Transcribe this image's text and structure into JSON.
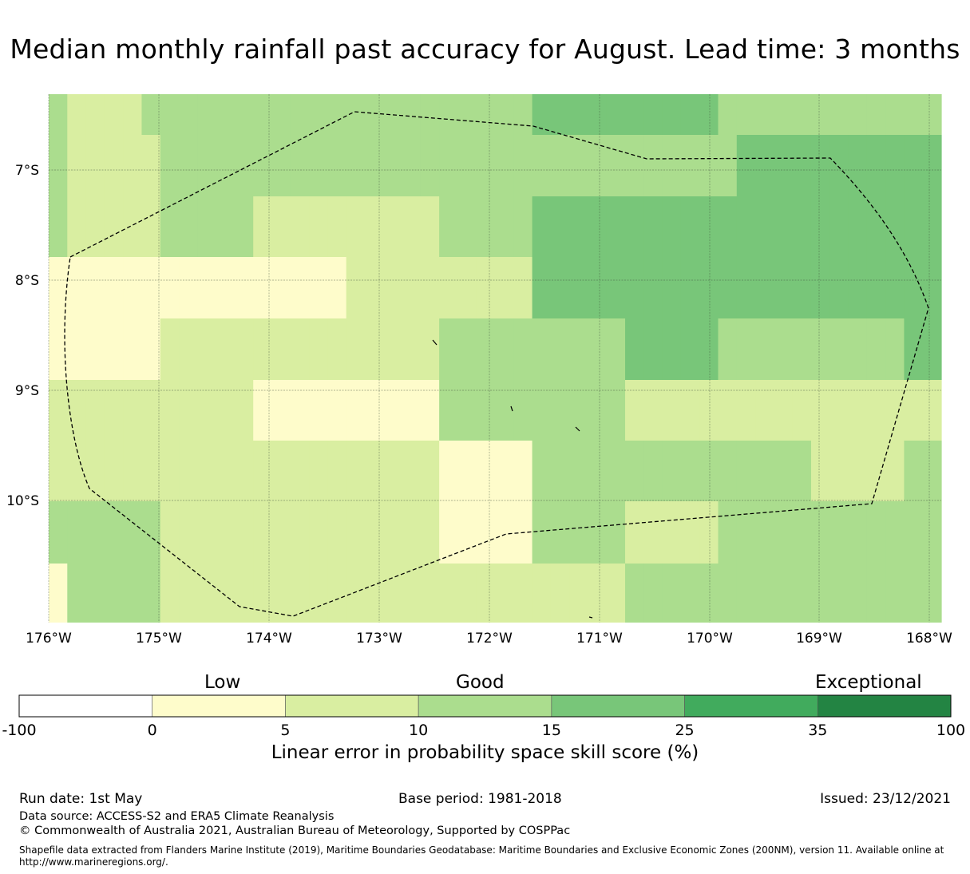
{
  "title": "Median monthly rainfall past accuracy for August. Lead time: 3 months",
  "map": {
    "lon_ticks": [
      "176°W",
      "175°W",
      "174°W",
      "173°W",
      "172°W",
      "171°W",
      "170°W",
      "169°W",
      "168°W"
    ],
    "lat_ticks": [
      "7°S",
      "8°S",
      "9°S",
      "10°S"
    ],
    "grid": true,
    "boundary_style": "dashed",
    "category_colors": [
      "#ffffff",
      "#fefccb",
      "#d9eea1",
      "#abdd8e",
      "#78c679",
      "#41ab5d",
      "#238443"
    ],
    "cells": [
      [
        3,
        2,
        2,
        2,
        2,
        3,
        3,
        3,
        3,
        3,
        3,
        3,
        3,
        3,
        3,
        3,
        3,
        3,
        3,
        3,
        3,
        3,
        3,
        3,
        3,
        3,
        4,
        4,
        4,
        4,
        4,
        4,
        4,
        4,
        4,
        4,
        3,
        3,
        3,
        3,
        3,
        3,
        3,
        3,
        3,
        3,
        3,
        3
      ],
      [
        3,
        2,
        2,
        2,
        2,
        2,
        3,
        3,
        3,
        3,
        3,
        3,
        3,
        3,
        3,
        3,
        3,
        3,
        3,
        3,
        3,
        3,
        3,
        3,
        3,
        3,
        3,
        3,
        3,
        3,
        3,
        3,
        3,
        3,
        3,
        3,
        3,
        4,
        4,
        4,
        4,
        4,
        4,
        4,
        4,
        4,
        4,
        4
      ],
      [
        3,
        2,
        2,
        2,
        2,
        2,
        3,
        3,
        3,
        3,
        3,
        2,
        2,
        2,
        2,
        2,
        2,
        2,
        2,
        2,
        2,
        3,
        3,
        3,
        3,
        3,
        4,
        4,
        4,
        4,
        4,
        4,
        4,
        4,
        4,
        4,
        4,
        4,
        4,
        4,
        4,
        4,
        4,
        4,
        4,
        4,
        4,
        4
      ],
      [
        1,
        1,
        1,
        1,
        1,
        1,
        1,
        1,
        1,
        1,
        1,
        1,
        1,
        1,
        1,
        1,
        2,
        2,
        2,
        2,
        2,
        2,
        2,
        2,
        2,
        2,
        4,
        4,
        4,
        4,
        4,
        4,
        4,
        4,
        4,
        4,
        4,
        4,
        4,
        4,
        4,
        4,
        4,
        4,
        4,
        4,
        4,
        4
      ],
      [
        1,
        1,
        1,
        1,
        1,
        1,
        2,
        2,
        2,
        2,
        2,
        2,
        2,
        2,
        2,
        2,
        2,
        2,
        2,
        2,
        2,
        3,
        3,
        3,
        3,
        3,
        3,
        3,
        3,
        3,
        3,
        4,
        4,
        4,
        4,
        4,
        3,
        3,
        3,
        3,
        3,
        3,
        3,
        3,
        3,
        3,
        4,
        4
      ],
      [
        2,
        2,
        2,
        2,
        2,
        2,
        2,
        2,
        2,
        2,
        2,
        1,
        1,
        1,
        1,
        1,
        1,
        1,
        1,
        1,
        1,
        3,
        3,
        3,
        3,
        3,
        3,
        3,
        3,
        3,
        3,
        2,
        2,
        2,
        2,
        2,
        2,
        2,
        2,
        2,
        2,
        2,
        2,
        2,
        2,
        2,
        2,
        2
      ],
      [
        2,
        2,
        2,
        2,
        2,
        2,
        2,
        2,
        2,
        2,
        2,
        2,
        2,
        2,
        2,
        2,
        2,
        2,
        2,
        2,
        2,
        1,
        1,
        1,
        1,
        1,
        3,
        3,
        3,
        3,
        3,
        3,
        3,
        3,
        3,
        3,
        3,
        3,
        3,
        3,
        3,
        2,
        2,
        2,
        2,
        2,
        3,
        3
      ],
      [
        3,
        3,
        3,
        3,
        3,
        3,
        2,
        2,
        2,
        2,
        2,
        2,
        2,
        2,
        2,
        2,
        2,
        2,
        2,
        2,
        2,
        1,
        1,
        1,
        1,
        1,
        3,
        3,
        3,
        3,
        3,
        2,
        2,
        2,
        2,
        2,
        3,
        3,
        3,
        3,
        3,
        3,
        3,
        3,
        3,
        3,
        3,
        3
      ],
      [
        1,
        3,
        3,
        3,
        3,
        3,
        2,
        2,
        2,
        2,
        2,
        2,
        2,
        2,
        2,
        2,
        2,
        2,
        2,
        2,
        2,
        2,
        2,
        2,
        2,
        2,
        2,
        2,
        2,
        2,
        2,
        3,
        3,
        3,
        3,
        3,
        3,
        3,
        3,
        3,
        3,
        3,
        3,
        3,
        3,
        3,
        3,
        3
      ]
    ]
  },
  "legend": {
    "low": "Low",
    "good": "Good",
    "exceptional": "Exceptional",
    "bins": [
      {
        "from": -100,
        "to": 0,
        "color": "#ffffff"
      },
      {
        "from": 0,
        "to": 5,
        "color": "#fefccb"
      },
      {
        "from": 5,
        "to": 10,
        "color": "#d9eea1"
      },
      {
        "from": 10,
        "to": 15,
        "color": "#abdd8e"
      },
      {
        "from": 15,
        "to": 25,
        "color": "#78c679"
      },
      {
        "from": 25,
        "to": 35,
        "color": "#41ab5d"
      },
      {
        "from": 35,
        "to": 100,
        "color": "#238443"
      }
    ],
    "tick_labels": [
      "-100",
      "0",
      "5",
      "10",
      "15",
      "25",
      "35",
      "100"
    ],
    "axis_label": "Linear error in probability space skill score (%)"
  },
  "footer": {
    "run_date": "Run date: 1st May",
    "base_period": "Base period: 1981-2018",
    "issued": "Issued: 23/12/2021",
    "data_source": "Data source: ACCESS-S2 and ERA5 Climate Reanalysis",
    "copyright": "© Commonwealth of Australia 2021, Australian Bureau of Meteorology, Supported by COSPPac",
    "shapefile_line1": "Shapefile data extracted from Flanders Marine Institute (2019), Maritime Boundaries Geodatabase: Maritime Boundaries and Exclusive Economic Zones (200NM), version 11. Available online at",
    "shapefile_line2": "http://www.marineregions.org/."
  }
}
